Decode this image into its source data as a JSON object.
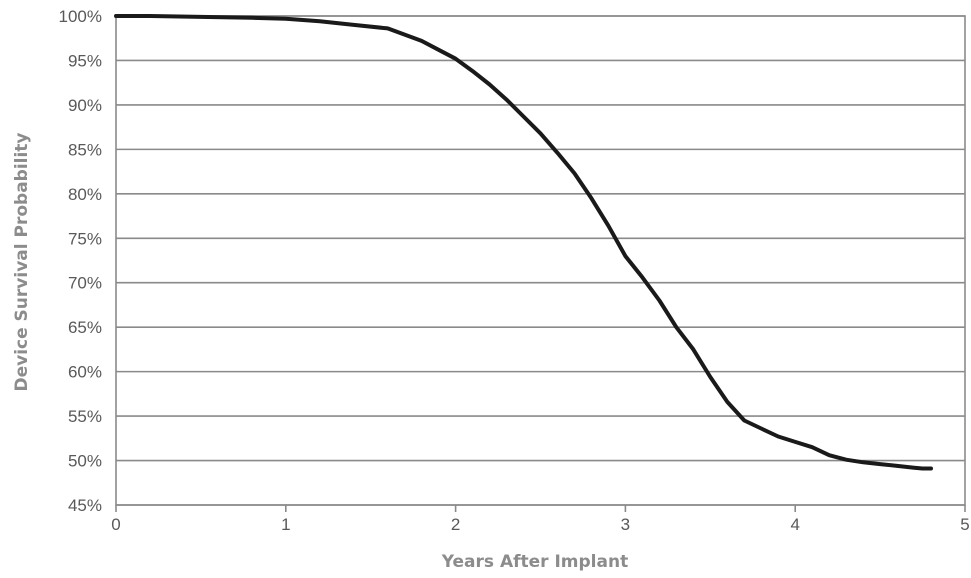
{
  "chart_data": {
    "type": "line",
    "title": "",
    "xlabel": "Years After Implant",
    "ylabel": "Device Survival Probability",
    "xlim": [
      0,
      5
    ],
    "ylim": [
      45,
      100
    ],
    "x_ticks": [
      0,
      1,
      2,
      3,
      4,
      5
    ],
    "x_tick_labels": [
      "0",
      "1",
      "2",
      "3",
      "4",
      "5"
    ],
    "y_ticks": [
      45,
      50,
      55,
      60,
      65,
      70,
      75,
      80,
      85,
      90,
      95,
      100
    ],
    "y_tick_labels": [
      "45%",
      "50%",
      "55%",
      "60%",
      "65%",
      "70%",
      "75%",
      "80%",
      "85%",
      "90%",
      "95%",
      "100%"
    ],
    "grid": true,
    "legend": "none",
    "series": [
      {
        "color": "#1a1a1a",
        "x": [
          0.0,
          0.2,
          0.5,
          0.8,
          1.0,
          1.2,
          1.4,
          1.6,
          1.8,
          1.9,
          2.0,
          2.1,
          2.2,
          2.3,
          2.4,
          2.5,
          2.6,
          2.7,
          2.8,
          2.9,
          3.0,
          3.1,
          3.2,
          3.3,
          3.4,
          3.5,
          3.6,
          3.7,
          3.8,
          3.9,
          4.0,
          4.1,
          4.2,
          4.3,
          4.4,
          4.5,
          4.6,
          4.7,
          4.75,
          4.8
        ],
        "y": [
          100,
          100,
          99.9,
          99.8,
          99.7,
          99.4,
          99.0,
          98.6,
          97.2,
          96.2,
          95.2,
          93.8,
          92.3,
          90.6,
          88.7,
          86.8,
          84.6,
          82.3,
          79.5,
          76.4,
          73.0,
          70.6,
          68.0,
          65.0,
          62.5,
          59.4,
          56.6,
          54.5,
          53.6,
          52.7,
          52.1,
          51.5,
          50.6,
          50.1,
          49.8,
          49.6,
          49.4,
          49.2,
          49.1,
          49.1
        ]
      }
    ]
  }
}
